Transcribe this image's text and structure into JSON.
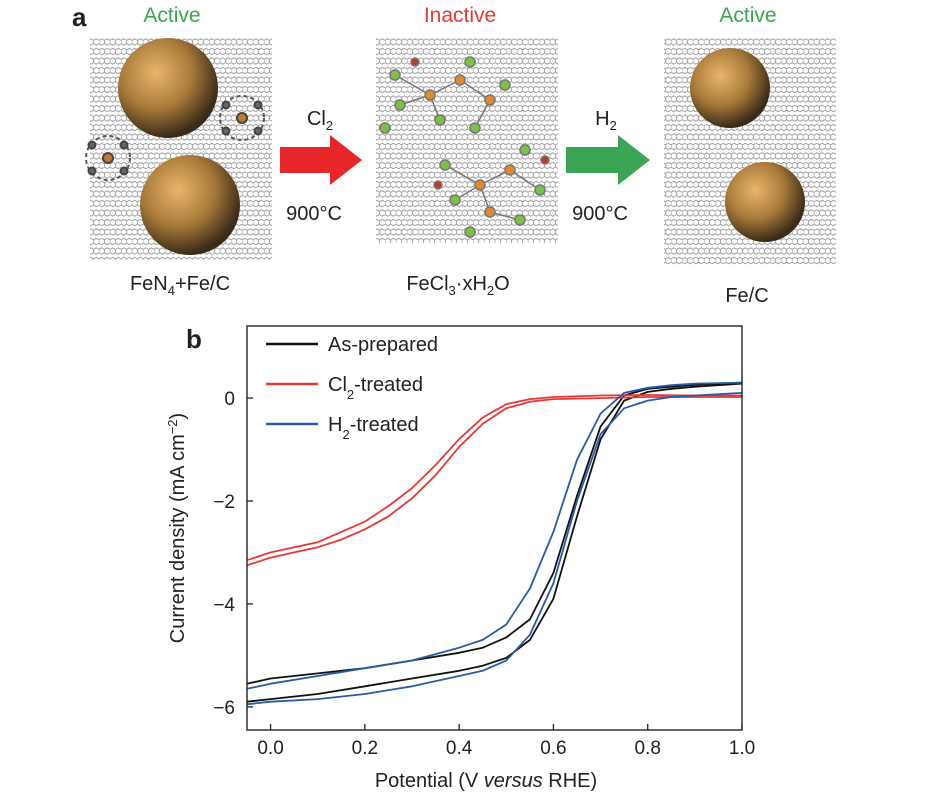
{
  "panel_a": {
    "letter": "a",
    "states": [
      {
        "status": "Active",
        "status_color": "#3aa655",
        "caption_main": "FeN",
        "caption_sub": "4",
        "caption_rest": "+Fe/C"
      },
      {
        "status": "Inactive",
        "status_color": "#e53935",
        "caption_main": "FeCl",
        "caption_sub": "3",
        "caption_rest": "·xH",
        "caption_sub2": "2",
        "caption_rest2": "O"
      },
      {
        "status": "Active",
        "status_color": "#3aa655",
        "caption_main": "Fe/C"
      }
    ],
    "arrows": [
      {
        "gas": "Cl",
        "gas_sub": "2",
        "temp": "900°C",
        "color": "#e8262a"
      },
      {
        "gas": "H",
        "gas_sub": "2",
        "temp": "900°C",
        "color": "#3aa655"
      }
    ]
  },
  "panel_b": {
    "letter": "b"
  },
  "chart_data": {
    "type": "line",
    "xlabel_pre": "Potential (V ",
    "xlabel_italic": "versus",
    "xlabel_post": " RHE)",
    "ylabel": "Current density (mA cm",
    "ylabel_sup": "−2",
    "ylabel_close": ")",
    "xlim": [
      -0.05,
      1.0
    ],
    "ylim": [
      -6.45,
      1.4
    ],
    "xticks": [
      0.0,
      0.2,
      0.4,
      0.6,
      0.8,
      1.0
    ],
    "xtick_labels": [
      "0.0",
      "0.2",
      "0.4",
      "0.6",
      "0.8",
      "1.0"
    ],
    "yticks": [
      0,
      -2,
      -4,
      -6
    ],
    "ytick_labels": [
      "0",
      "−2",
      "−4",
      "−6"
    ],
    "legend_position": "top-left",
    "series": [
      {
        "name": "As-prepared",
        "name_main": "As-prepared",
        "color": "#111111",
        "lower": {
          "x": [
            -0.05,
            0.0,
            0.1,
            0.2,
            0.3,
            0.4,
            0.45,
            0.5,
            0.55,
            0.6,
            0.65,
            0.7,
            0.75,
            0.8,
            0.85,
            0.9,
            1.0
          ],
          "y": [
            -5.9,
            -5.85,
            -5.75,
            -5.6,
            -5.45,
            -5.3,
            -5.2,
            -5.05,
            -4.7,
            -3.9,
            -2.3,
            -0.8,
            -0.05,
            0.12,
            0.18,
            0.22,
            0.28
          ]
        },
        "upper": {
          "x": [
            -0.05,
            0.0,
            0.1,
            0.2,
            0.3,
            0.4,
            0.45,
            0.5,
            0.55,
            0.6,
            0.65,
            0.7,
            0.75,
            0.8,
            0.85,
            0.9,
            1.0
          ],
          "y": [
            -5.55,
            -5.45,
            -5.35,
            -5.25,
            -5.1,
            -4.95,
            -4.85,
            -4.65,
            -4.3,
            -3.4,
            -1.9,
            -0.55,
            0.05,
            0.18,
            0.22,
            0.26,
            0.3
          ]
        }
      },
      {
        "name": "Cl2-treated",
        "name_main": "Cl",
        "name_sub": "2",
        "name_rest": "-treated",
        "color": "#e53935",
        "lower": {
          "x": [
            -0.05,
            0.0,
            0.05,
            0.1,
            0.15,
            0.2,
            0.25,
            0.3,
            0.35,
            0.4,
            0.45,
            0.5,
            0.55,
            0.6,
            0.7,
            0.8,
            0.9,
            1.0
          ],
          "y": [
            -3.25,
            -3.1,
            -3.0,
            -2.9,
            -2.75,
            -2.55,
            -2.3,
            -1.95,
            -1.5,
            -0.95,
            -0.5,
            -0.2,
            -0.07,
            -0.02,
            0.0,
            0.02,
            0.02,
            0.02
          ]
        },
        "upper": {
          "x": [
            -0.05,
            0.0,
            0.05,
            0.1,
            0.15,
            0.2,
            0.25,
            0.3,
            0.35,
            0.4,
            0.45,
            0.5,
            0.55,
            0.6,
            0.7,
            0.8,
            0.9,
            1.0
          ],
          "y": [
            -3.15,
            -3.0,
            -2.9,
            -2.8,
            -2.6,
            -2.4,
            -2.1,
            -1.75,
            -1.3,
            -0.8,
            -0.38,
            -0.12,
            -0.02,
            0.02,
            0.05,
            0.06,
            0.05,
            0.05
          ]
        }
      },
      {
        "name": "H2-treated",
        "name_main": "H",
        "name_sub": "2",
        "name_rest": "-treated",
        "color": "#2b5ba8",
        "lower": {
          "x": [
            -0.05,
            0.0,
            0.1,
            0.2,
            0.3,
            0.4,
            0.45,
            0.5,
            0.55,
            0.6,
            0.65,
            0.7,
            0.75,
            0.8,
            0.85,
            0.9,
            1.0
          ],
          "y": [
            -5.95,
            -5.9,
            -5.85,
            -5.75,
            -5.6,
            -5.4,
            -5.3,
            -5.1,
            -4.6,
            -3.6,
            -2.0,
            -0.7,
            -0.2,
            -0.05,
            0.02,
            0.05,
            0.1
          ]
        },
        "upper": {
          "x": [
            -0.05,
            0.0,
            0.1,
            0.2,
            0.3,
            0.4,
            0.45,
            0.5,
            0.55,
            0.6,
            0.65,
            0.7,
            0.75,
            0.8,
            0.85,
            0.9,
            1.0
          ],
          "y": [
            -5.65,
            -5.55,
            -5.4,
            -5.25,
            -5.1,
            -4.85,
            -4.7,
            -4.4,
            -3.7,
            -2.6,
            -1.2,
            -0.3,
            0.1,
            0.2,
            0.25,
            0.28,
            0.3
          ]
        }
      }
    ]
  }
}
